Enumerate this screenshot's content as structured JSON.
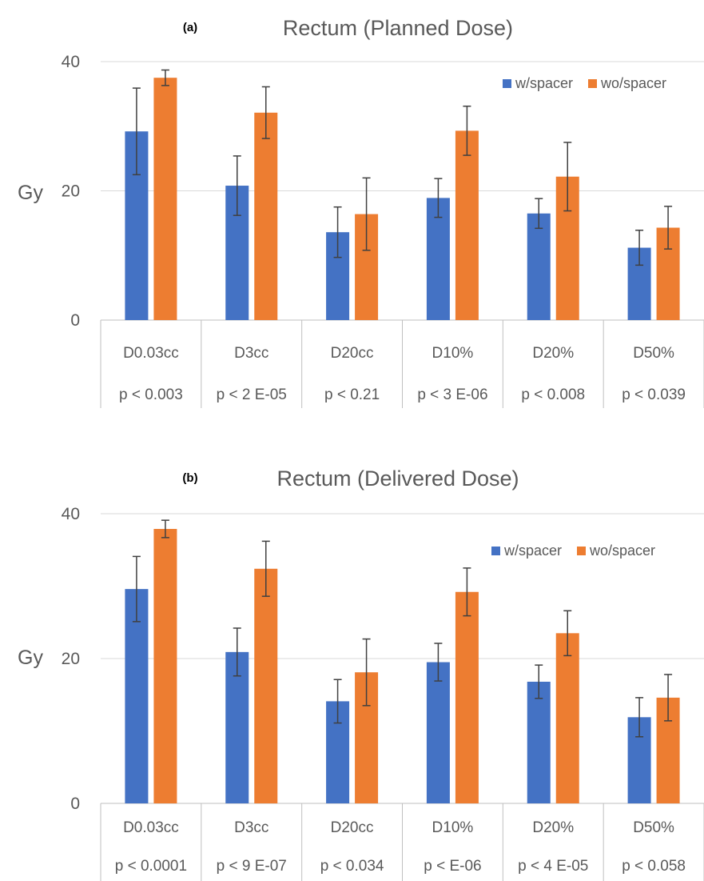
{
  "chart_data": [
    {
      "type": "bar",
      "panel_label": "(a)",
      "title": "Rectum (Planned Dose)",
      "ylabel": "Gy",
      "xlabel": "",
      "ylim": [
        0,
        40
      ],
      "yticks": [
        0,
        20,
        40
      ],
      "grid": true,
      "legend_position": "top-right",
      "categories": [
        "D0.03cc",
        "D3cc",
        "D20cc",
        "D10%",
        "D20%",
        "D50%"
      ],
      "category_sublabels": [
        "p < 0.003",
        "p < 2 E-05",
        "p < 0.21",
        "p < 3 E-06",
        "p < 0.008",
        "p < 0.039"
      ],
      "series": [
        {
          "name": "w/spacer",
          "color": "#4472C4",
          "values": [
            29.2,
            20.8,
            13.6,
            18.9,
            16.5,
            11.2
          ],
          "error": [
            6.7,
            4.6,
            3.9,
            3.0,
            2.3,
            2.7
          ]
        },
        {
          "name": "wo/spacer",
          "color": "#ED7D31",
          "values": [
            37.5,
            32.1,
            16.4,
            29.3,
            22.2,
            14.3
          ],
          "error": [
            1.2,
            4.0,
            5.6,
            3.8,
            5.3,
            3.3
          ]
        }
      ]
    },
    {
      "type": "bar",
      "panel_label": "(b)",
      "title": "Rectum (Delivered Dose)",
      "ylabel": "Gy",
      "xlabel": "",
      "ylim": [
        0,
        40
      ],
      "yticks": [
        0,
        20,
        40
      ],
      "grid": true,
      "legend_position": "top-right",
      "categories": [
        "D0.03cc",
        "D3cc",
        "D20cc",
        "D10%",
        "D20%",
        "D50%"
      ],
      "category_sublabels": [
        "p < 0.0001",
        "p < 9 E-07",
        "p < 0.034",
        "p <  E-06",
        "p < 4 E-05",
        "p < 0.058"
      ],
      "series": [
        {
          "name": "w/spacer",
          "color": "#4472C4",
          "values": [
            29.6,
            20.9,
            14.1,
            19.5,
            16.8,
            11.9
          ],
          "error": [
            4.5,
            3.3,
            3.0,
            2.6,
            2.3,
            2.7
          ]
        },
        {
          "name": "wo/spacer",
          "color": "#ED7D31",
          "values": [
            37.9,
            32.4,
            18.1,
            29.2,
            23.5,
            14.6
          ],
          "error": [
            1.2,
            3.8,
            4.6,
            3.3,
            3.1,
            3.2
          ]
        }
      ]
    }
  ]
}
